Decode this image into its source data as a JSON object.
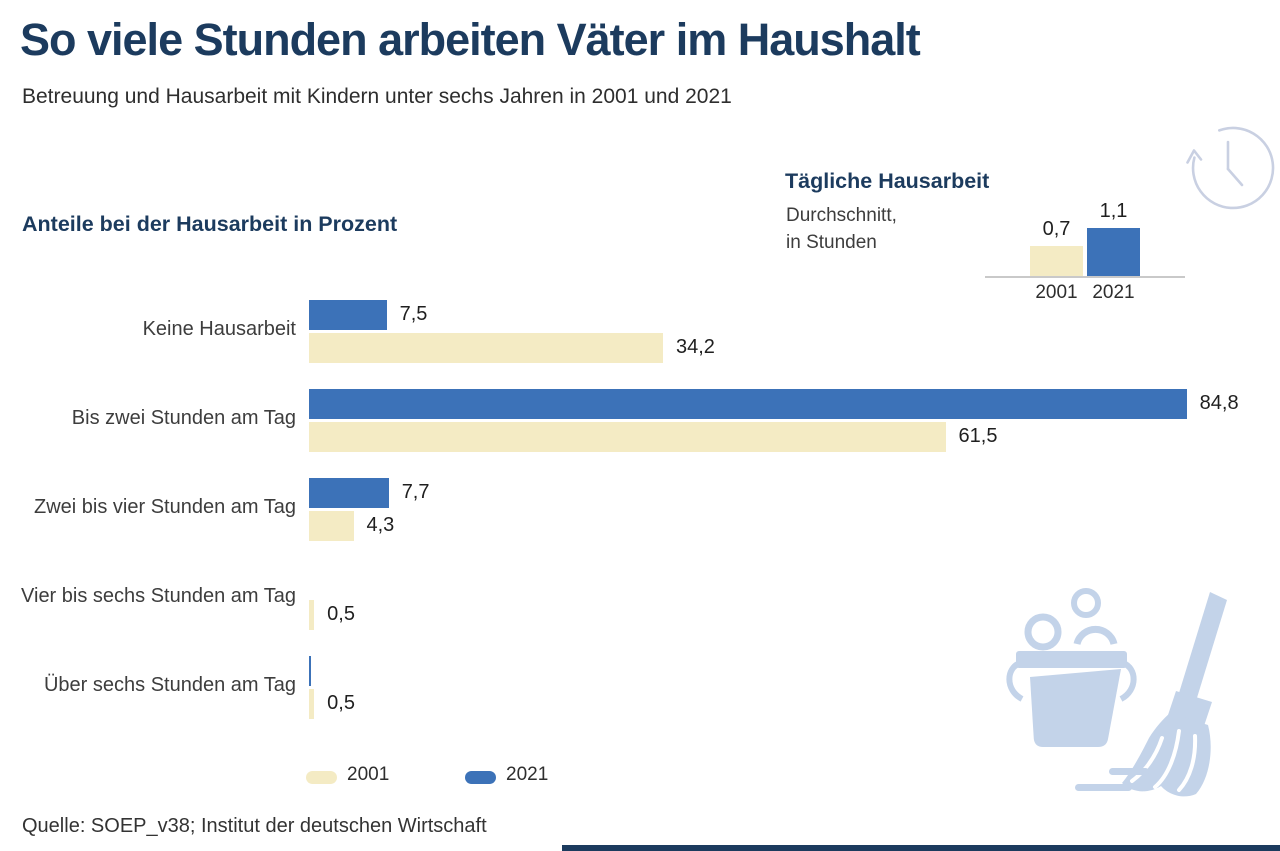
{
  "page": {
    "title": "So viele Stunden arbeiten Väter im Haushalt",
    "subtitle": "Betreuung und Hausarbeit mit Kindern unter sechs Jahren in 2001 und 2021",
    "source": "Quelle: SOEP_v38; Institut der deutschen Wirtschaft"
  },
  "colors": {
    "navy": "#1c3b5e",
    "blue_2021": "#3c72b8",
    "cream_2001": "#f4ebc4",
    "text_dark": "#2e2e2e",
    "category_text": "#3d3d3d",
    "value_text": "#1f1f1f",
    "illustration_blue": "#c3d3e9",
    "clock_stroke": "#c9d0e2",
    "axis_gray": "#c9c9c9"
  },
  "icons": {
    "clock": "clock-history-icon",
    "cleaning": "bucket-and-mop-illustration"
  },
  "chart_data": [
    {
      "type": "bar",
      "orientation": "horizontal",
      "title": "Anteile bei der Hausarbeit in Prozent",
      "unit": "Prozent",
      "categories": [
        "Keine Hausarbeit",
        "Bis zwei Stunden am Tag",
        "Zwei bis vier Stunden am Tag",
        "Vier bis sechs Stunden am Tag",
        "Über sechs Stunden am Tag"
      ],
      "series": [
        {
          "name": "2021",
          "color": "#3c72b8",
          "values": [
            7.5,
            84.8,
            7.7,
            0,
            0.1
          ],
          "labels": [
            "7,5",
            "84,8",
            "7,7",
            "",
            ""
          ]
        },
        {
          "name": "2001",
          "color": "#f4ebc4",
          "values": [
            34.2,
            61.5,
            4.3,
            0.5,
            0.5
          ],
          "labels": [
            "34,2",
            "61,5",
            "4,3",
            "0,5",
            "0,5"
          ]
        }
      ],
      "xlim": [
        0,
        100
      ],
      "grid": false,
      "value_labels": true,
      "legend_position": "bottom"
    },
    {
      "type": "bar",
      "orientation": "vertical",
      "title": "Tägliche Hausarbeit",
      "subtitle": [
        "Durchschnitt,",
        "in Stunden"
      ],
      "categories": [
        "2001",
        "2021"
      ],
      "values": [
        0.7,
        1.1
      ],
      "labels": [
        "0,7",
        "1,1"
      ],
      "colors": [
        "#f4ebc4",
        "#3c72b8"
      ],
      "unit": "Stunden"
    }
  ],
  "legend": {
    "items": [
      {
        "label": "2001",
        "color": "#f4ebc4"
      },
      {
        "label": "2021",
        "color": "#3c72b8"
      }
    ]
  }
}
